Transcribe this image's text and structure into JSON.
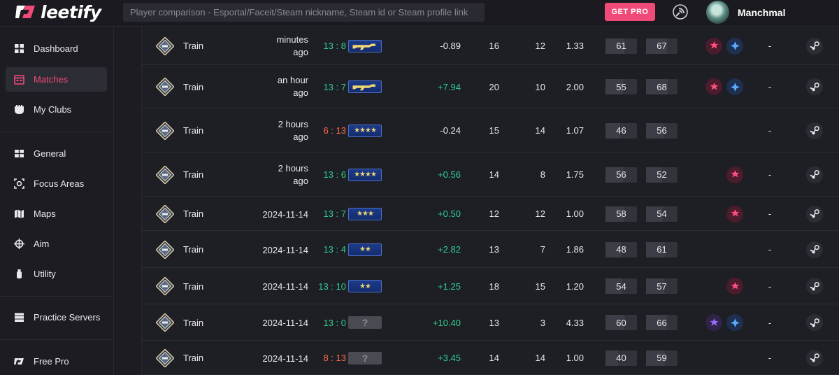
{
  "header": {
    "logo_text": "leetify",
    "search_placeholder": "Player comparison - Esportal/Faceit/Steam nickname, Steam id or Steam profile link",
    "get_pro_label": "GET PRO",
    "username": "Manchmal"
  },
  "sidebar": {
    "items": [
      {
        "label": "Dashboard",
        "icon": "dashboard-icon",
        "active": false
      },
      {
        "label": "Matches",
        "icon": "matches-icon",
        "active": true
      },
      {
        "label": "My Clubs",
        "icon": "clubs-icon",
        "active": false
      },
      {
        "label": "General",
        "icon": "general-icon",
        "active": false
      },
      {
        "label": "Focus Areas",
        "icon": "focus-areas-icon",
        "active": false
      },
      {
        "label": "Maps",
        "icon": "maps-icon",
        "active": false
      },
      {
        "label": "Aim",
        "icon": "aim-crosshair-icon",
        "active": false
      },
      {
        "label": "Utility",
        "icon": "utility-grenade-icon",
        "active": false
      },
      {
        "label": "Practice Servers",
        "icon": "servers-icon",
        "active": false
      },
      {
        "label": "Free Pro",
        "icon": "leetify-logo-icon",
        "active": false
      }
    ]
  },
  "colors": {
    "accent": "#f04a78",
    "win": "#2ecf8f",
    "loss": "#ff6b4a",
    "rank_gold": "#f0d675"
  },
  "matches": [
    {
      "map": "Train",
      "date_line1": "minutes",
      "date_line2": "ago",
      "score_a": "13",
      "score_b": "8",
      "result": "win",
      "rank": "ak",
      "rating": "-0.89",
      "kills": "16",
      "deaths": "12",
      "kd": "1.33",
      "stat1": "61",
      "stat1_fill": 0.61,
      "stat2": "67",
      "stat2_fill": 0.67,
      "badges": [
        "red",
        "blue"
      ],
      "dash": "-"
    },
    {
      "map": "Train",
      "date_line1": "an hour",
      "date_line2": "ago",
      "score_a": "13",
      "score_b": "7",
      "result": "win",
      "rank": "ak",
      "rating": "+7.94",
      "kills": "20",
      "deaths": "10",
      "kd": "2.00",
      "stat1": "55",
      "stat1_fill": 0.55,
      "stat2": "68",
      "stat2_fill": 0.68,
      "badges": [
        "red",
        "blue"
      ],
      "dash": "-"
    },
    {
      "map": "Train",
      "date_line1": "2 hours",
      "date_line2": "ago",
      "score_a": "6",
      "score_b": "13",
      "result": "loss",
      "rank": "★★★★",
      "rating": "-0.24",
      "kills": "15",
      "deaths": "14",
      "kd": "1.07",
      "stat1": "46",
      "stat1_fill": 0.46,
      "stat2": "56",
      "stat2_fill": 0.56,
      "badges": [],
      "dash": "-"
    },
    {
      "map": "Train",
      "date_line1": "2 hours",
      "date_line2": "ago",
      "score_a": "13",
      "score_b": "6",
      "result": "win",
      "rank": "★★★★",
      "rating": "+0.56",
      "kills": "14",
      "deaths": "8",
      "kd": "1.75",
      "stat1": "56",
      "stat1_fill": 0.56,
      "stat2": "52",
      "stat2_fill": 0.52,
      "badges": [
        "red"
      ],
      "dash": "-"
    },
    {
      "map": "Train",
      "date_line1": "2024-11-14",
      "date_line2": "",
      "score_a": "13",
      "score_b": "7",
      "result": "win",
      "rank": "★★★",
      "rating": "+0.50",
      "kills": "12",
      "deaths": "12",
      "kd": "1.00",
      "stat1": "58",
      "stat1_fill": 0.58,
      "stat2": "54",
      "stat2_fill": 0.54,
      "badges": [
        "red"
      ],
      "dash": "-"
    },
    {
      "map": "Train",
      "date_line1": "2024-11-14",
      "date_line2": "",
      "score_a": "13",
      "score_b": "4",
      "result": "win",
      "rank": "★★",
      "rating": "+2.82",
      "kills": "13",
      "deaths": "7",
      "kd": "1.86",
      "stat1": "48",
      "stat1_fill": 0.48,
      "stat2": "61",
      "stat2_fill": 0.61,
      "badges": [],
      "dash": "-"
    },
    {
      "map": "Train",
      "date_line1": "2024-11-14",
      "date_line2": "",
      "score_a": "13",
      "score_b": "10",
      "result": "win",
      "rank": "★★",
      "rating": "+1.25",
      "kills": "18",
      "deaths": "15",
      "kd": "1.20",
      "stat1": "54",
      "stat1_fill": 0.54,
      "stat2": "57",
      "stat2_fill": 0.57,
      "badges": [
        "red"
      ],
      "dash": "-"
    },
    {
      "map": "Train",
      "date_line1": "2024-11-14",
      "date_line2": "",
      "score_a": "13",
      "score_b": "0",
      "result": "win",
      "rank": "?",
      "rating": "+10.40",
      "kills": "13",
      "deaths": "3",
      "kd": "4.33",
      "stat1": "60",
      "stat1_fill": 0.6,
      "stat2": "66",
      "stat2_fill": 0.66,
      "badges": [
        "purple",
        "blue"
      ],
      "dash": "-"
    },
    {
      "map": "Train",
      "date_line1": "2024-11-14",
      "date_line2": "",
      "score_a": "8",
      "score_b": "13",
      "result": "loss",
      "rank": "?",
      "rating": "+3.45",
      "kills": "14",
      "deaths": "14",
      "kd": "1.00",
      "stat1": "40",
      "stat1_fill": 0.4,
      "stat2": "59",
      "stat2_fill": 0.59,
      "badges": [],
      "dash": "-"
    }
  ]
}
